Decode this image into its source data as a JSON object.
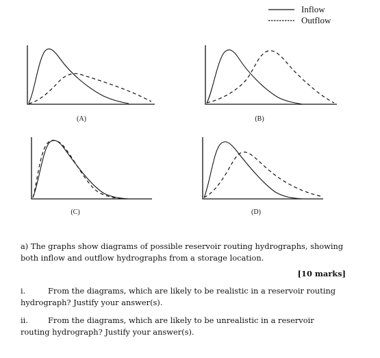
{
  "legend": {
    "inflow": "Inflow",
    "outflow": "Outflow"
  },
  "graphs": [
    {
      "label": "(A)"
    },
    {
      "label": "(B)"
    },
    {
      "label": "(C)"
    },
    {
      "label": "(D)"
    }
  ],
  "question": {
    "intro_line1": "a) The graphs show diagrams of possible reservoir routing hydrographs, showing",
    "intro_line2": "both inflow and outflow hydrographs from a storage location.",
    "marks": "[10 marks]",
    "i_num": "i.",
    "i_line1": "From the diagrams, which are likely to be realistic in a reservoir routing",
    "i_line2": "hydrograph? Justify your answer(s).",
    "ii_num": "ii.",
    "ii_line1": "From the diagrams, which are likely to be unrealistic in a reservoir",
    "ii_line2": "routing hydrograph? Justify your answer(s)."
  }
}
